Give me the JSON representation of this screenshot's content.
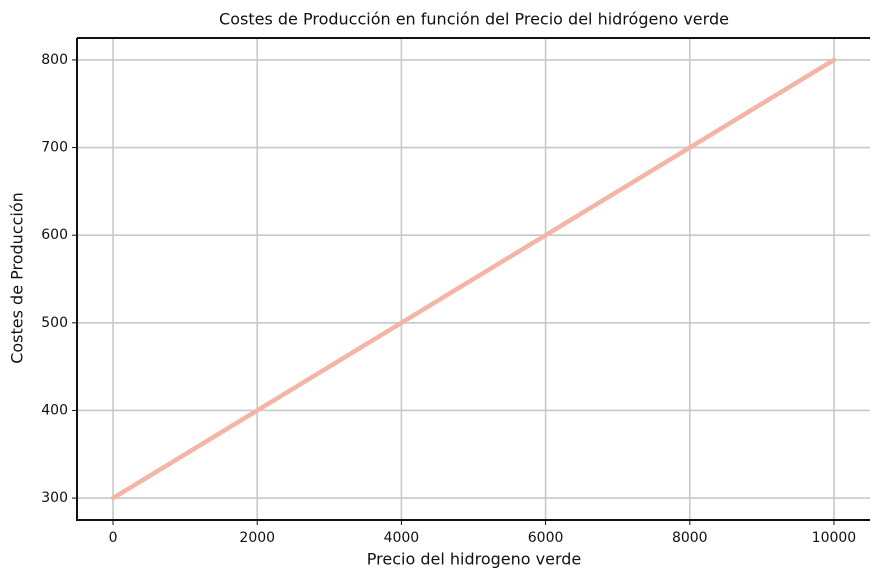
{
  "chart_data": {
    "type": "line",
    "title": "Costes de Producción en función del Precio del hidrógeno verde",
    "x_label": "Precio del hidrogeno verde",
    "y_label": "Costes de Producción",
    "x": [
      0,
      10000
    ],
    "series": [
      {
        "color": "#f4b4a6",
        "values": [
          300,
          800
        ]
      }
    ],
    "xlim": [
      -500,
      10500
    ],
    "xticks": [
      0,
      2000,
      4000,
      6000,
      8000,
      10000
    ],
    "ylim": [
      275,
      825
    ],
    "yticks": [
      300,
      400,
      500,
      600,
      700,
      800
    ],
    "grid": true
  }
}
